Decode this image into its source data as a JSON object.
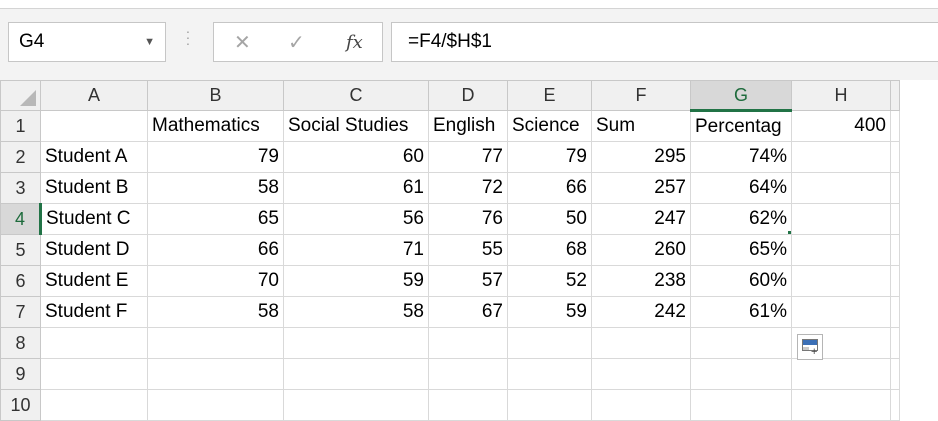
{
  "formula_bar": {
    "name_box": "G4",
    "formula": "=F4/$H$1",
    "fx_label": "fx"
  },
  "columns": [
    "A",
    "B",
    "C",
    "D",
    "E",
    "F",
    "G",
    "H"
  ],
  "rows": [
    {
      "num": "1",
      "cells": [
        "",
        "Mathematics",
        "Social Studies",
        "English",
        "Science",
        "Sum",
        "Percentag",
        "400"
      ]
    },
    {
      "num": "2",
      "cells": [
        "Student A",
        "79",
        "60",
        "77",
        "79",
        "295",
        "74%",
        ""
      ]
    },
    {
      "num": "3",
      "cells": [
        "Student B",
        "58",
        "61",
        "72",
        "66",
        "257",
        "64%",
        ""
      ]
    },
    {
      "num": "4",
      "cells": [
        "Student C",
        "65",
        "56",
        "76",
        "50",
        "247",
        "62%",
        ""
      ]
    },
    {
      "num": "5",
      "cells": [
        "Student D",
        "66",
        "71",
        "55",
        "68",
        "260",
        "65%",
        ""
      ]
    },
    {
      "num": "6",
      "cells": [
        "Student E",
        "70",
        "59",
        "57",
        "52",
        "238",
        "60%",
        ""
      ]
    },
    {
      "num": "7",
      "cells": [
        "Student F",
        "58",
        "58",
        "67",
        "59",
        "242",
        "61%",
        ""
      ]
    },
    {
      "num": "8",
      "cells": [
        "",
        "",
        "",
        "",
        "",
        "",
        "",
        ""
      ]
    },
    {
      "num": "9",
      "cells": [
        "",
        "",
        "",
        "",
        "",
        "",
        "",
        ""
      ]
    },
    {
      "num": "10",
      "cells": [
        "",
        "",
        "",
        "",
        "",
        "",
        "",
        ""
      ]
    }
  ],
  "selection": {
    "column": "G",
    "row": "4"
  },
  "colors": {
    "accent": "#217346"
  }
}
